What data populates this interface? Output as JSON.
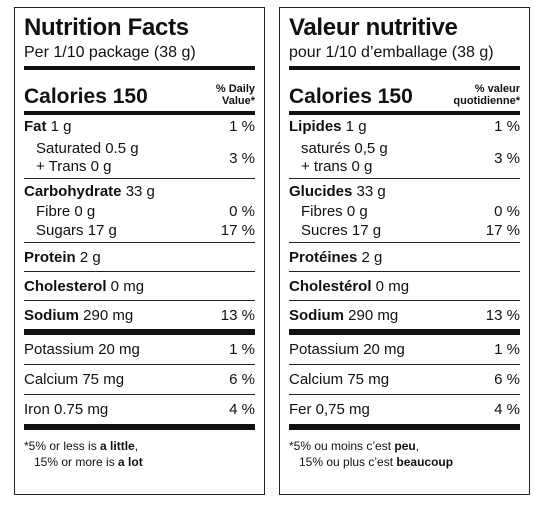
{
  "en": {
    "title": "Nutrition Facts",
    "serving": "Per 1/10 package (38 g)",
    "calories": "Calories 150",
    "dv_line1": "% Daily",
    "dv_line2": "Value*",
    "fat_name": "Fat",
    "fat_amount": " 1 g",
    "fat_pct": "1 %",
    "sat": "Saturated 0.5 g",
    "trans": "+ Trans 0 g",
    "sat_pct": "3 %",
    "carb_name": "Carbohydrate",
    "carb_amount": " 33 g",
    "fibre": "Fibre 0 g",
    "fibre_pct": "0 %",
    "sugars": "Sugars 17 g",
    "sugars_pct": "17 %",
    "protein_name": "Protein",
    "protein_amount": " 2 g",
    "chol_name": "Cholesterol",
    "chol_amount": " 0 mg",
    "sodium_name": "Sodium",
    "sodium_amount": " 290 mg",
    "sodium_pct": "13 %",
    "potassium": "Potassium 20 mg",
    "potassium_pct": "1 %",
    "calcium": "Calcium 75 mg",
    "calcium_pct": "6 %",
    "iron": "Iron 0.75 mg",
    "iron_pct": "4 %",
    "foot1_pre": "*5% or less is ",
    "foot1_bold": "a little",
    "foot1_post": ",",
    "foot2_pre": "15% or more is ",
    "foot2_bold": "a lot"
  },
  "fr": {
    "title": "Valeur nutritive",
    "serving": "pour 1/10 d’emballage (38 g)",
    "calories": "Calories 150",
    "dv_line1": "% valeur",
    "dv_line2": "quotidienne*",
    "fat_name": "Lipides",
    "fat_amount": " 1 g",
    "fat_pct": "1 %",
    "sat": "saturés 0,5 g",
    "trans": "+ trans 0 g",
    "sat_pct": "3 %",
    "carb_name": "Glucides",
    "carb_amount": " 33 g",
    "fibre": "Fibres 0 g",
    "fibre_pct": "0 %",
    "sugars": "Sucres 17 g",
    "sugars_pct": "17 %",
    "protein_name": "Protéines",
    "protein_amount": " 2 g",
    "chol_name": "Cholestérol",
    "chol_amount": " 0 mg",
    "sodium_name": "Sodium",
    "sodium_amount": " 290 mg",
    "sodium_pct": "13 %",
    "potassium": "Potassium 20 mg",
    "potassium_pct": "1 %",
    "calcium": "Calcium 75 mg",
    "calcium_pct": "6 %",
    "iron": "Fer 0,75 mg",
    "iron_pct": "4 %",
    "foot1_pre": "*5% ou moins c’est ",
    "foot1_bold": "peu",
    "foot1_post": ",",
    "foot2_pre": "15% ou plus c’est ",
    "foot2_bold": "beaucoup"
  }
}
